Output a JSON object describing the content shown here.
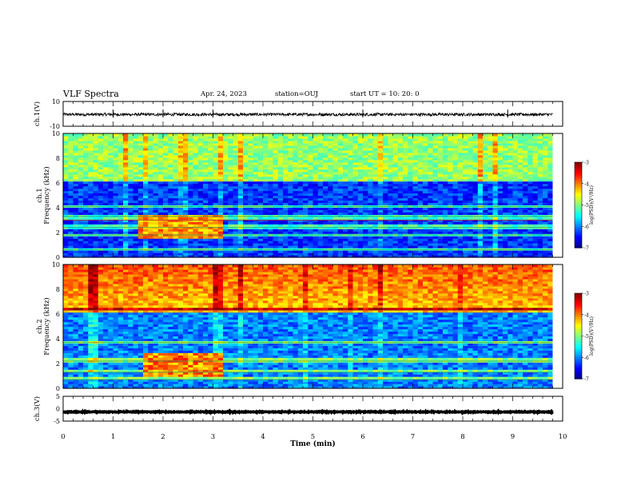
{
  "header": {
    "title": "VLF Spectra",
    "date": "Apr. 24, 2023",
    "station": "station=OUJ",
    "start": "start UT =  10: 20: 0"
  },
  "chart_data": [
    {
      "type": "line",
      "panel": "ch1-waveform",
      "ylabel": "ch.1(V)",
      "ylim": [
        -10,
        10
      ],
      "yticks": [
        "10",
        "-10"
      ],
      "x_unit": "min",
      "xlim": [
        0,
        10
      ],
      "series": [
        {
          "baseline": -0.5,
          "noise_amplitude": 1.2,
          "spikes_at": [
            1.0,
            2.0,
            3.0,
            6.0,
            8.9
          ]
        }
      ]
    },
    {
      "type": "heatmap",
      "panel": "ch1-spectrogram",
      "ylabel": "Frequency (kHz)",
      "channel_label": "ch.1",
      "ylim": [
        0,
        10
      ],
      "yticks": [
        "0",
        "2",
        "4",
        "6",
        "8",
        "10"
      ],
      "xlim": [
        0,
        10
      ],
      "data_end_min": 9.8,
      "colorbar": {
        "label": "log(PSD)(V²/Hz)",
        "range": [
          -7,
          -3
        ],
        "ticks": [
          "-3",
          "-4",
          "-5",
          "-6",
          "-7"
        ]
      },
      "bands": [
        {
          "from_khz": 0,
          "to_khz": 6,
          "level": -6.3
        },
        {
          "from_khz": 6,
          "to_khz": 10,
          "level": -4.9
        }
      ],
      "emission_lines_khz": [
        3.0,
        3.3,
        1.8,
        2.4,
        0.6,
        4.1
      ],
      "burst": {
        "t_from_min": 1.5,
        "t_to_min": 3.1,
        "f_from_khz": 1.4,
        "f_to_khz": 3.4,
        "level": -4.3
      }
    },
    {
      "type": "heatmap",
      "panel": "ch2-spectrogram",
      "ylabel": "Frequency (kHz)",
      "channel_label": "ch.2",
      "ylim": [
        0,
        10
      ],
      "yticks": [
        "0",
        "2",
        "4",
        "6",
        "8",
        "10"
      ],
      "xlim": [
        0,
        10
      ],
      "data_end_min": 9.8,
      "colorbar": {
        "label": "log(PSD)(V²/Hz)",
        "range": [
          -7,
          -3
        ],
        "ticks": [
          "-3",
          "-4",
          "-5",
          "-6",
          "-7"
        ]
      },
      "bands": [
        {
          "from_khz": 0,
          "to_khz": 6,
          "level": -6.0
        },
        {
          "from_khz": 6,
          "to_khz": 10,
          "level": -4.3
        }
      ],
      "emission_lines_khz": [
        6.3,
        3.7,
        2.2,
        1.3,
        0.7
      ],
      "burst": {
        "t_from_min": 1.6,
        "t_to_min": 3.1,
        "f_from_khz": 0.9,
        "f_to_khz": 2.8,
        "level": -4.2
      }
    },
    {
      "type": "line",
      "panel": "ch3-waveform",
      "ylabel": "ch.3(V)",
      "ylim": [
        -5,
        5
      ],
      "yticks": [
        "5",
        "0",
        "-5"
      ],
      "xlim": [
        0,
        10
      ],
      "xlabel": "Time (min)",
      "xticks": [
        "0",
        "1",
        "2",
        "3",
        "4",
        "5",
        "6",
        "7",
        "8",
        "9",
        "10"
      ],
      "series": [
        {
          "baseline": -1.3,
          "noise_amplitude": 0.15
        }
      ]
    }
  ]
}
